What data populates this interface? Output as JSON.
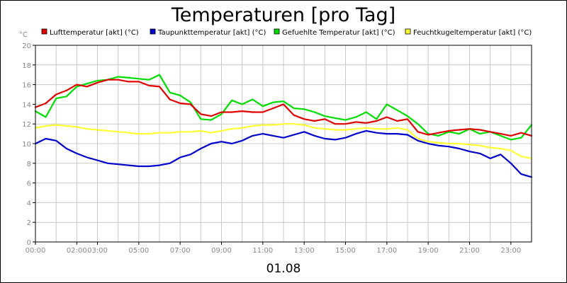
{
  "chart_data": {
    "type": "line",
    "title": "Temperaturen [pro Tag]",
    "ylabel": "°C",
    "xlabel": "01.08",
    "ylim": [
      0,
      20
    ],
    "xlim": [
      0,
      24
    ],
    "y_ticks": [
      "0",
      "2",
      "4",
      "6",
      "8",
      "10",
      "12",
      "14",
      "16",
      "18",
      "20"
    ],
    "x_ticks": [
      {
        "x": 0,
        "label": "00:00"
      },
      {
        "x": 2,
        "label": "02:00"
      },
      {
        "x": 3,
        "label": "03:00"
      },
      {
        "x": 5,
        "label": "05:00"
      },
      {
        "x": 7,
        "label": "07:00"
      },
      {
        "x": 9,
        "label": "09:00"
      },
      {
        "x": 11,
        "label": "11:00"
      },
      {
        "x": 13,
        "label": "13:00"
      },
      {
        "x": 15,
        "label": "15:00"
      },
      {
        "x": 17,
        "label": "17:00"
      },
      {
        "x": 19,
        "label": "19:00"
      },
      {
        "x": 21,
        "label": "21:00"
      },
      {
        "x": 23,
        "label": "23:00"
      }
    ],
    "grid": true,
    "legend_position": "top",
    "series": [
      {
        "name": "Lufttemperatur [akt] (°C)",
        "color": "#e00000",
        "x": [
          0,
          0.5,
          1,
          1.5,
          2,
          2.5,
          3,
          3.5,
          4,
          4.5,
          5,
          5.5,
          6,
          6.5,
          7,
          7.5,
          8,
          8.5,
          9,
          9.5,
          10,
          10.5,
          11,
          11.5,
          12,
          12.5,
          13,
          13.5,
          14,
          14.5,
          15,
          15.5,
          16,
          16.5,
          17,
          17.5,
          18,
          18.5,
          19,
          19.5,
          20,
          20.5,
          21,
          21.5,
          22,
          22.5,
          23,
          23.5,
          24
        ],
        "values": [
          13.7,
          14.1,
          15.0,
          15.4,
          16.0,
          15.8,
          16.2,
          16.5,
          16.5,
          16.3,
          16.3,
          15.9,
          15.8,
          14.5,
          14.1,
          14.0,
          13.0,
          12.8,
          13.2,
          13.2,
          13.3,
          13.2,
          13.2,
          13.6,
          14.0,
          12.9,
          12.5,
          12.3,
          12.5,
          12.0,
          12.0,
          12.2,
          12.1,
          12.3,
          12.7,
          12.3,
          12.5,
          11.2,
          10.9,
          11.1,
          11.3,
          11.4,
          11.5,
          11.4,
          11.2,
          11.0,
          10.8,
          11.1,
          10.8
        ]
      },
      {
        "name": "Taupunkttemperatur [akt] (°C)",
        "color": "#0000cc",
        "x": [
          0,
          0.5,
          1,
          1.5,
          2,
          2.5,
          3,
          3.5,
          4,
          4.5,
          5,
          5.5,
          6,
          6.5,
          7,
          7.5,
          8,
          8.5,
          9,
          9.5,
          10,
          10.5,
          11,
          11.5,
          12,
          12.5,
          13,
          13.5,
          14,
          14.5,
          15,
          15.5,
          16,
          16.5,
          17,
          17.5,
          18,
          18.5,
          19,
          19.5,
          20,
          20.5,
          21,
          21.5,
          22,
          22.5,
          23,
          23.5,
          24
        ],
        "values": [
          10.0,
          10.5,
          10.3,
          9.5,
          9.0,
          8.6,
          8.3,
          8.0,
          7.9,
          7.8,
          7.7,
          7.7,
          7.8,
          8.0,
          8.6,
          8.9,
          9.5,
          10.0,
          10.2,
          10.0,
          10.3,
          10.8,
          11.0,
          10.8,
          10.6,
          10.9,
          11.2,
          10.8,
          10.5,
          10.4,
          10.6,
          11.0,
          11.3,
          11.1,
          11.0,
          11.0,
          10.9,
          10.3,
          10.0,
          9.8,
          9.7,
          9.5,
          9.2,
          9.0,
          8.5,
          8.9,
          8.0,
          6.9,
          6.6
        ]
      },
      {
        "name": "Gefuehlte Temperatur [akt] (°C)",
        "color": "#00dd00",
        "x": [
          0,
          0.5,
          1,
          1.5,
          2,
          2.5,
          3,
          3.5,
          4,
          4.5,
          5,
          5.5,
          6,
          6.5,
          7,
          7.5,
          8,
          8.5,
          9,
          9.5,
          10,
          10.5,
          11,
          11.5,
          12,
          12.5,
          13,
          13.5,
          14,
          14.5,
          15,
          15.5,
          16,
          16.5,
          17,
          17.5,
          18,
          18.5,
          19,
          19.5,
          20,
          20.5,
          21,
          21.5,
          22,
          22.5,
          23,
          23.5,
          24
        ],
        "values": [
          13.3,
          12.7,
          14.6,
          14.8,
          15.8,
          16.1,
          16.4,
          16.5,
          16.8,
          16.7,
          16.6,
          16.5,
          17.0,
          15.2,
          14.9,
          14.2,
          12.5,
          12.4,
          13.0,
          14.4,
          14.0,
          14.5,
          13.8,
          14.2,
          14.3,
          13.6,
          13.5,
          13.2,
          12.8,
          12.6,
          12.4,
          12.7,
          13.2,
          12.5,
          14.0,
          13.4,
          12.8,
          12.0,
          11.0,
          10.8,
          11.2,
          11.0,
          11.5,
          11.0,
          11.2,
          10.8,
          10.4,
          10.6,
          11.9
        ]
      },
      {
        "name": "Feuchtkugeltemperatur [akt] (°C)",
        "color": "#ffff33",
        "x": [
          0,
          0.5,
          1,
          1.5,
          2,
          2.5,
          3,
          3.5,
          4,
          4.5,
          5,
          5.5,
          6,
          6.5,
          7,
          7.5,
          8,
          8.5,
          9,
          9.5,
          10,
          10.5,
          11,
          11.5,
          12,
          12.5,
          13,
          13.5,
          14,
          14.5,
          15,
          15.5,
          16,
          16.5,
          17,
          17.5,
          18,
          18.5,
          19,
          19.5,
          20,
          20.5,
          21,
          21.5,
          22,
          22.5,
          23,
          23.5,
          24
        ],
        "values": [
          11.6,
          11.8,
          11.9,
          11.8,
          11.7,
          11.5,
          11.4,
          11.3,
          11.2,
          11.1,
          11.0,
          11.0,
          11.1,
          11.1,
          11.2,
          11.2,
          11.3,
          11.1,
          11.3,
          11.5,
          11.6,
          11.8,
          11.9,
          11.9,
          12.0,
          12.0,
          11.9,
          11.6,
          11.5,
          11.4,
          11.4,
          11.5,
          11.6,
          11.5,
          11.5,
          11.6,
          11.4,
          10.5,
          10.2,
          10.1,
          10.0,
          10.0,
          9.9,
          9.8,
          9.6,
          9.5,
          9.3,
          8.7,
          8.5
        ]
      }
    ]
  }
}
